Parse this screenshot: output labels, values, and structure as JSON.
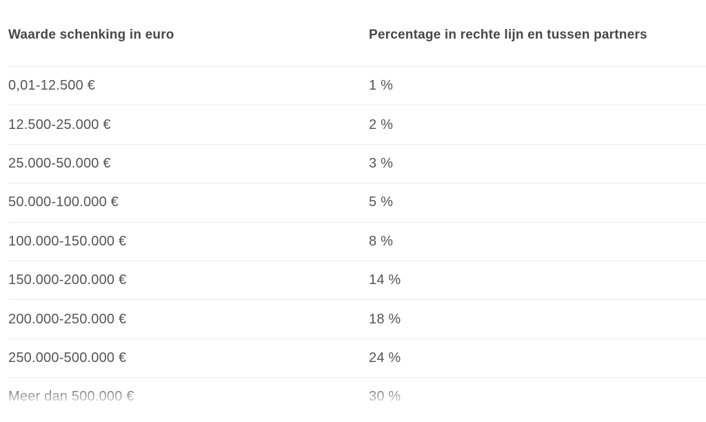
{
  "page": {
    "background_color": "#ffffff",
    "text_color": "#555555",
    "header_text_color": "#474747",
    "divider_color": "#ececec"
  },
  "table": {
    "columns": [
      {
        "label": "Waarde schenking in euro"
      },
      {
        "label": "Percentage in rechte lijn en tussen partners"
      }
    ],
    "rows": [
      {
        "value": "0,01-12.500 €",
        "percentage": "1 %"
      },
      {
        "value": "12.500-25.000 €",
        "percentage": "2 %"
      },
      {
        "value": "25.000-50.000 €",
        "percentage": "3 %"
      },
      {
        "value": "50.000-100.000 €",
        "percentage": "5 %"
      },
      {
        "value": "100.000-150.000 €",
        "percentage": "8 %"
      },
      {
        "value": "150.000-200.000 €",
        "percentage": "14 %"
      },
      {
        "value": "200.000-250.000 €",
        "percentage": "18 %"
      },
      {
        "value": "250.000-500.000 €",
        "percentage": "24 %"
      },
      {
        "value": "Meer dan 500.000 €",
        "percentage": "30 %"
      }
    ]
  },
  "chart_data": {
    "type": "table",
    "title": "",
    "columns": [
      "Waarde schenking in euro",
      "Percentage in rechte lijn en tussen partners"
    ],
    "categories": [
      "0,01-12.500 €",
      "12.500-25.000 €",
      "25.000-50.000 €",
      "50.000-100.000 €",
      "100.000-150.000 €",
      "150.000-200.000 €",
      "200.000-250.000 €",
      "250.000-500.000 €",
      "Meer dan 500.000 €"
    ],
    "values": [
      1,
      2,
      3,
      5,
      8,
      14,
      18,
      24,
      30
    ]
  }
}
